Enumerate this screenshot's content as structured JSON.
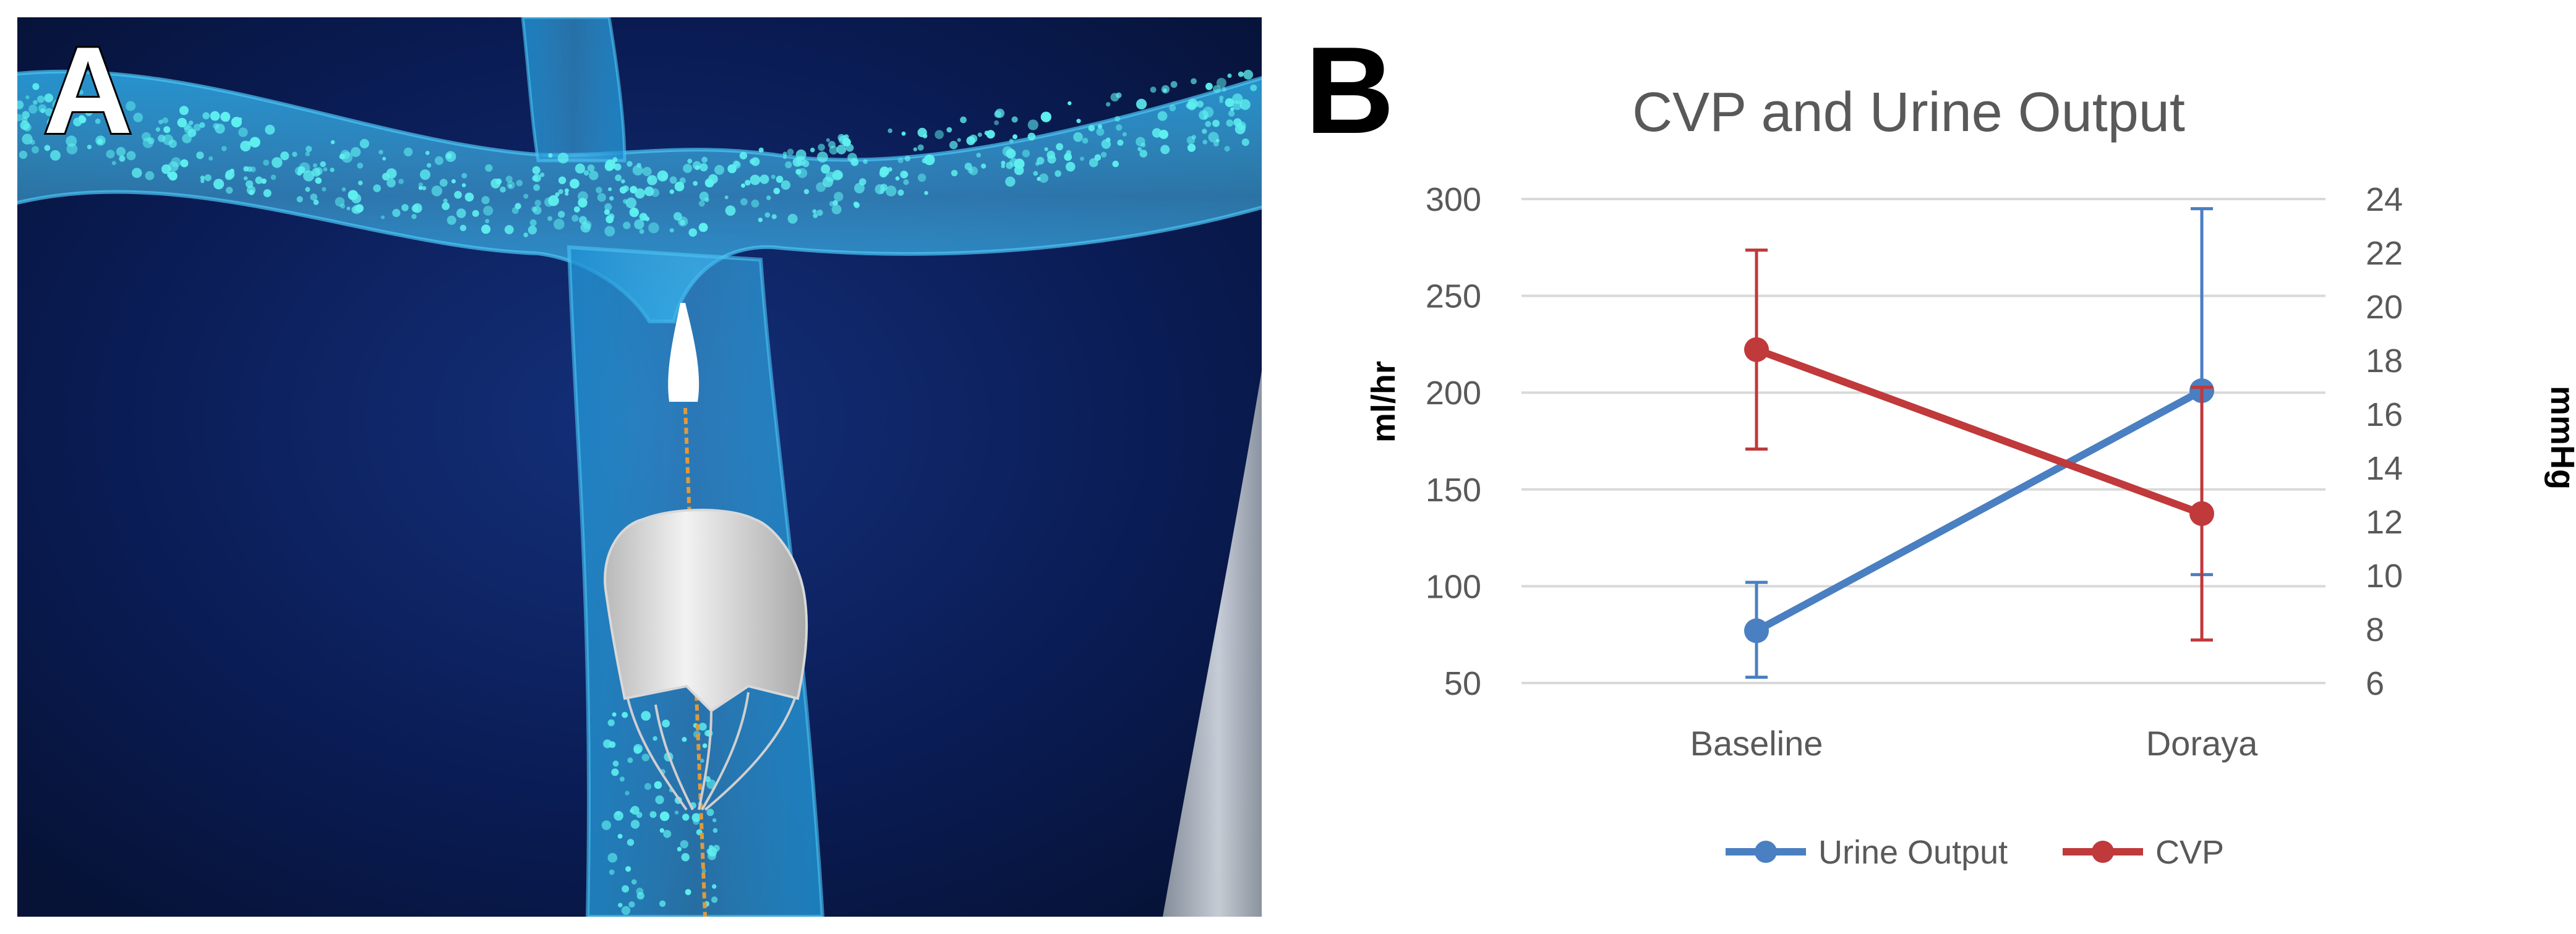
{
  "panel_a": {
    "letter": "A"
  },
  "panel_b": {
    "letter": "B"
  },
  "chart_data": {
    "type": "line",
    "title": "CVP and Urine Output",
    "categories": [
      "Baseline",
      "Doraya"
    ],
    "y_left": {
      "label": "ml/hr",
      "range": [
        50,
        300
      ],
      "ticks": [
        50,
        100,
        150,
        200,
        250,
        300
      ]
    },
    "y_right": {
      "label": "mmHg",
      "range": [
        6,
        24
      ],
      "ticks": [
        6,
        8,
        10,
        12,
        14,
        16,
        18,
        20,
        22,
        24
      ]
    },
    "grid": true,
    "legend_position": "bottom",
    "series": [
      {
        "name": "Urine Output",
        "axis": "left",
        "color": "#4a7fc1",
        "values": [
          77,
          201
        ],
        "err_low": [
          53,
          106
        ],
        "err_high": [
          102,
          295
        ]
      },
      {
        "name": "CVP",
        "axis": "right",
        "color": "#c0393b",
        "values": [
          18.4,
          12.3
        ],
        "err_low": [
          14.7,
          7.6
        ],
        "err_high": [
          22.1,
          17.0
        ]
      }
    ]
  }
}
